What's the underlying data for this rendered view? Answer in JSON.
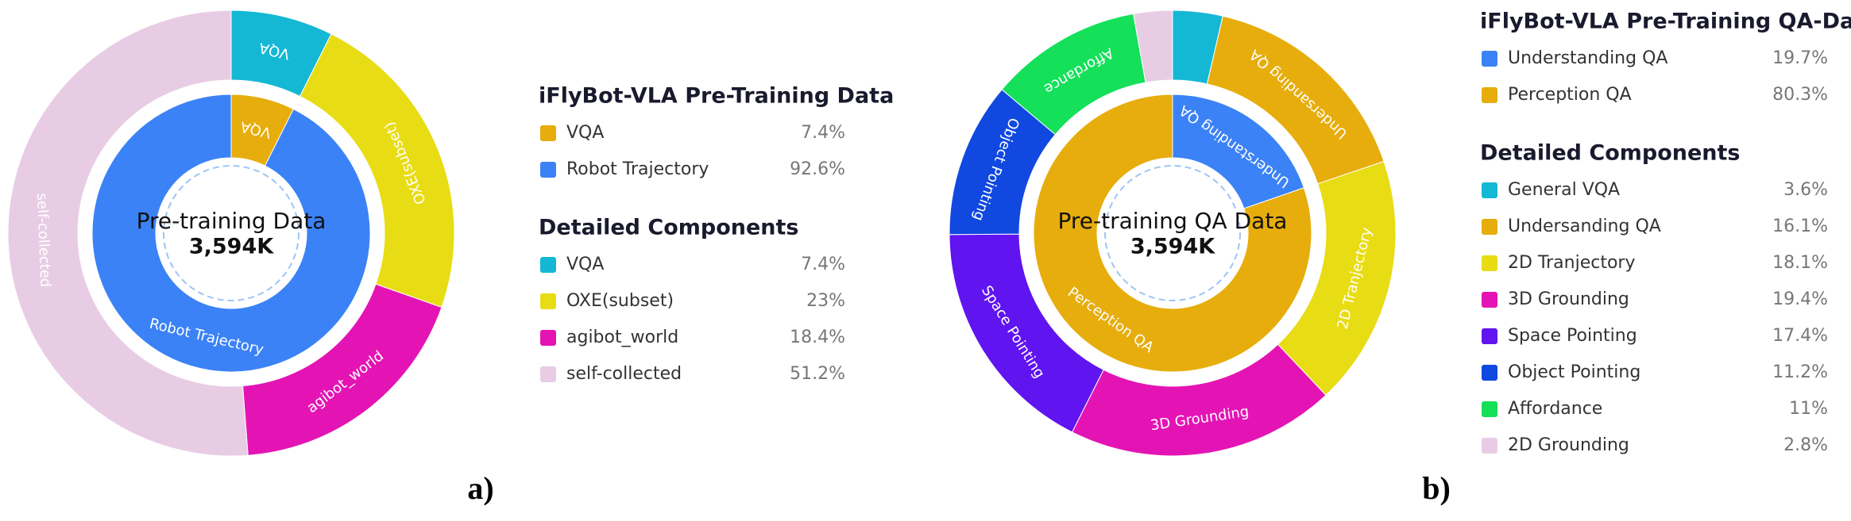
{
  "chart_data": [
    {
      "type": "donut",
      "panel_label": "a)",
      "center_title": "Pre-training Data",
      "center_value": "3,594K",
      "rings": [
        {
          "title": "iFlyBot-VLA Pre-Training Data",
          "categories": [
            "VQA",
            "Robot Trajectory"
          ],
          "values": [
            7.4,
            92.6
          ],
          "value_labels": [
            "7.4%",
            "92.6%"
          ],
          "colors": [
            "#e6ad0c",
            "#3b82f6"
          ]
        },
        {
          "title": "Detailed Components",
          "categories": [
            "VQA",
            "OXE(subset)",
            "agibot_world",
            "self-collected"
          ],
          "values": [
            7.4,
            23,
            18.4,
            51.2
          ],
          "value_labels": [
            "7.4%",
            "23%",
            "18.4%",
            "51.2%"
          ],
          "colors": [
            "#14b8d4",
            "#e8dc14",
            "#e414b4",
            "#e8cce4"
          ]
        }
      ]
    },
    {
      "type": "donut",
      "panel_label": "b)",
      "center_title": "Pre-training QA Data",
      "center_value": "3,594K",
      "rings": [
        {
          "title": "iFlyBot-VLA Pre-Training QA-Data",
          "categories": [
            "Understanding QA",
            "Perception QA"
          ],
          "values": [
            19.7,
            80.3
          ],
          "value_labels": [
            "19.7%",
            "80.3%"
          ],
          "colors": [
            "#3b82f6",
            "#e6ad0c"
          ]
        },
        {
          "title": "Detailed Components",
          "categories": [
            "General VQA",
            "Undersanding QA",
            "2D Tranjectory",
            "3D Grounding",
            "Space Pointing",
            "Object Pointing",
            "Affordance",
            "2D Grounding"
          ],
          "values": [
            3.6,
            16.1,
            18.1,
            19.4,
            17.4,
            11.2,
            11,
            2.8
          ],
          "value_labels": [
            "3.6%",
            "16.1%",
            "18.1%",
            "19.4%",
            "17.4%",
            "11.2%",
            "11%",
            "2.8%"
          ],
          "colors": [
            "#14b8d4",
            "#e6ad0c",
            "#e8dc14",
            "#e414b4",
            "#6014f0",
            "#1048e0",
            "#14e05a",
            "#e8cce4"
          ]
        }
      ]
    }
  ]
}
